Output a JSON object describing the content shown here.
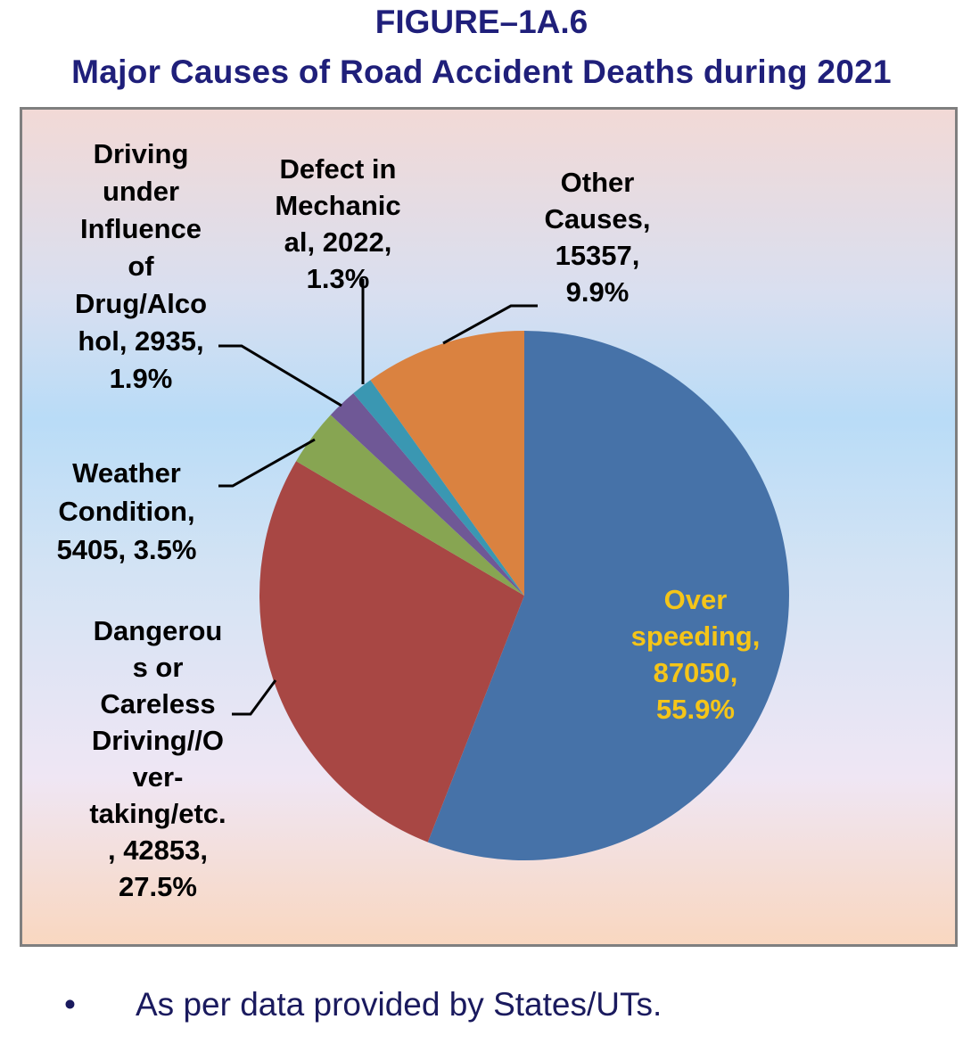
{
  "figure_label": "FIGURE–1A.6",
  "chart_data": {
    "type": "pie",
    "title": "Major Causes of Road Accident Deaths during 2021",
    "slices": [
      {
        "name": "Over speeding",
        "value": 87050,
        "percent": 55.9,
        "color": "#4672a8",
        "label_lines": [
          "Over",
          "speeding,",
          "87050,",
          "55.9%"
        ]
      },
      {
        "name": "Dangerous or Careless Driving//Over-taking/etc.",
        "value": 42853,
        "percent": 27.5,
        "color": "#a84744",
        "label_lines": [
          "Dangerou",
          "s or",
          "Careless",
          "Driving//O",
          "ver-",
          "taking/etc.",
          ", 42853,",
          "27.5%"
        ]
      },
      {
        "name": "Weather Condition",
        "value": 5405,
        "percent": 3.5,
        "color": "#87a552",
        "label_lines": [
          "Weather",
          "Condition,",
          "5405, 3.5%"
        ]
      },
      {
        "name": "Driving under Influence of Drug/Alcohol",
        "value": 2935,
        "percent": 1.9,
        "color": "#6f5896",
        "label_lines": [
          "Driving",
          "under",
          "Influence",
          "of",
          "Drug/Alco",
          "hol, 2935,",
          "1.9%"
        ]
      },
      {
        "name": "Defect in Mechanical",
        "value": 2022,
        "percent": 1.3,
        "color": "#3a97b2",
        "label_lines": [
          "Defect in",
          "Mechanic",
          "al, 2022,",
          "1.3%"
        ]
      },
      {
        "name": "Other Causes",
        "value": 15357,
        "percent": 9.9,
        "color": "#da8240",
        "label_lines": [
          "Other",
          "Causes,",
          "15357,",
          "9.9%"
        ]
      }
    ],
    "inside_label_color": "#f5c518",
    "legend": "none"
  },
  "footnote": {
    "bullet": "•",
    "text": "As per data provided by States/UTs."
  }
}
